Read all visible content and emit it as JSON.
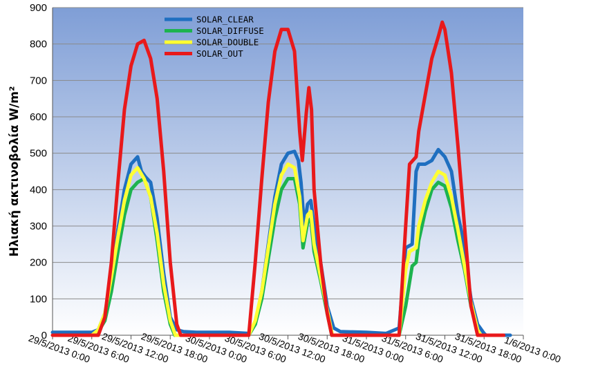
{
  "chart_data": {
    "type": "line",
    "ylabel": "Ηλιακή ακτινοβολία W/m²",
    "xlabel": "",
    "title": "",
    "ylim": [
      0,
      900
    ],
    "yticks": [
      0,
      100,
      200,
      300,
      400,
      500,
      600,
      700,
      800,
      900
    ],
    "xlim": [
      0,
      72
    ],
    "x_unit": "hours from 29/5/2013 0:00",
    "xtick_labels": [
      "29/5/2013 0:00",
      "29/5/2013 6:00",
      "29/5/2013 12:00",
      "29/5/2013 18:00",
      "30/5/2013 0:00",
      "30/5/2013 6:00",
      "30/5/2013 12:00",
      "30/5/2013 18:00",
      "31/5/2013 0:00",
      "31/5/2013 6:00",
      "31/5/2013 12:00",
      "31/5/2013 18:00",
      "1/6/2013 0:00"
    ],
    "grid": true,
    "legend_position": "top-center",
    "background": "gradient-blue",
    "series": [
      {
        "name": "SOLAR_CLEAR",
        "color": "#1f6fc0",
        "points": [
          [
            0,
            8
          ],
          [
            6,
            8
          ],
          [
            7,
            15
          ],
          [
            8,
            60
          ],
          [
            9,
            160
          ],
          [
            10,
            290
          ],
          [
            11,
            400
          ],
          [
            12,
            470
          ],
          [
            13,
            490
          ],
          [
            13.6,
            450
          ],
          [
            14.2,
            435
          ],
          [
            15,
            420
          ],
          [
            16,
            320
          ],
          [
            17,
            170
          ],
          [
            18,
            50
          ],
          [
            19,
            15
          ],
          [
            20,
            10
          ],
          [
            22,
            8
          ],
          [
            27,
            8
          ],
          [
            30,
            5
          ],
          [
            31,
            30
          ],
          [
            32,
            120
          ],
          [
            33,
            250
          ],
          [
            34,
            380
          ],
          [
            35,
            470
          ],
          [
            36,
            500
          ],
          [
            37,
            505
          ],
          [
            37.6,
            480
          ],
          [
            38,
            420
          ],
          [
            38.5,
            300
          ],
          [
            39,
            360
          ],
          [
            39.5,
            370
          ],
          [
            40,
            300
          ],
          [
            41,
            200
          ],
          [
            42,
            80
          ],
          [
            43,
            20
          ],
          [
            44,
            10
          ],
          [
            48,
            8
          ],
          [
            51,
            5
          ],
          [
            53,
            20
          ],
          [
            54,
            240
          ],
          [
            55,
            250
          ],
          [
            55.6,
            450
          ],
          [
            56,
            470
          ],
          [
            57,
            470
          ],
          [
            58,
            480
          ],
          [
            59,
            510
          ],
          [
            60,
            490
          ],
          [
            61,
            450
          ],
          [
            62,
            330
          ],
          [
            62.6,
            280
          ],
          [
            63,
            220
          ],
          [
            64,
            100
          ],
          [
            65,
            30
          ],
          [
            66,
            5
          ],
          [
            66.3,
            0
          ],
          [
            70,
            0
          ]
        ]
      },
      {
        "name": "SOLAR_DIFFUSE",
        "color": "#1db34f",
        "points": [
          [
            6,
            0
          ],
          [
            7,
            10
          ],
          [
            8,
            40
          ],
          [
            9,
            120
          ],
          [
            10,
            230
          ],
          [
            11,
            330
          ],
          [
            12,
            400
          ],
          [
            13,
            420
          ],
          [
            14,
            430
          ],
          [
            15,
            380
          ],
          [
            16,
            260
          ],
          [
            17,
            120
          ],
          [
            18,
            30
          ],
          [
            18.7,
            0
          ],
          [
            30,
            0
          ],
          [
            31,
            30
          ],
          [
            32,
            100
          ],
          [
            33,
            210
          ],
          [
            34,
            320
          ],
          [
            35,
            400
          ],
          [
            36,
            430
          ],
          [
            37,
            430
          ],
          [
            37.8,
            360
          ],
          [
            38.3,
            240
          ],
          [
            39,
            310
          ],
          [
            39.5,
            320
          ],
          [
            40,
            230
          ],
          [
            41,
            150
          ],
          [
            42,
            60
          ],
          [
            42.7,
            0
          ],
          [
            53,
            0
          ],
          [
            54,
            80
          ],
          [
            55,
            190
          ],
          [
            55.6,
            200
          ],
          [
            56,
            260
          ],
          [
            57,
            340
          ],
          [
            58,
            400
          ],
          [
            59,
            420
          ],
          [
            60,
            410
          ],
          [
            61,
            350
          ],
          [
            62,
            260
          ],
          [
            63,
            180
          ],
          [
            64,
            80
          ],
          [
            65,
            10
          ],
          [
            65.5,
            0
          ]
        ]
      },
      {
        "name": "SOLAR_DOUBLE",
        "color": "#ffff33",
        "points": [
          [
            6,
            0
          ],
          [
            7,
            15
          ],
          [
            8,
            60
          ],
          [
            9,
            160
          ],
          [
            10,
            270
          ],
          [
            11,
            370
          ],
          [
            12,
            440
          ],
          [
            13,
            460
          ],
          [
            14,
            430
          ],
          [
            15,
            380
          ],
          [
            16,
            280
          ],
          [
            17,
            140
          ],
          [
            18,
            40
          ],
          [
            18.8,
            0
          ],
          [
            30,
            0
          ],
          [
            31,
            40
          ],
          [
            32,
            120
          ],
          [
            33,
            240
          ],
          [
            34,
            360
          ],
          [
            35,
            440
          ],
          [
            36,
            470
          ],
          [
            37,
            460
          ],
          [
            37.8,
            380
          ],
          [
            38.3,
            260
          ],
          [
            39,
            330
          ],
          [
            39.5,
            340
          ],
          [
            40,
            250
          ],
          [
            41,
            160
          ],
          [
            42,
            70
          ],
          [
            42.8,
            0
          ],
          [
            53,
            0
          ],
          [
            54,
            180
          ],
          [
            54.6,
            230
          ],
          [
            55.6,
            240
          ],
          [
            56,
            300
          ],
          [
            57,
            370
          ],
          [
            58,
            420
          ],
          [
            59,
            450
          ],
          [
            60,
            440
          ],
          [
            61,
            380
          ],
          [
            62,
            290
          ],
          [
            63,
            190
          ],
          [
            64,
            90
          ],
          [
            65,
            15
          ],
          [
            65.5,
            0
          ]
        ]
      },
      {
        "name": "SOLAR_OUT",
        "color": "#e8191b",
        "points": [
          [
            0,
            0
          ],
          [
            7,
            0
          ],
          [
            8,
            50
          ],
          [
            9,
            200
          ],
          [
            10,
            420
          ],
          [
            11,
            620
          ],
          [
            12,
            740
          ],
          [
            13,
            800
          ],
          [
            14,
            810
          ],
          [
            15,
            760
          ],
          [
            16,
            650
          ],
          [
            17,
            450
          ],
          [
            18,
            200
          ],
          [
            19,
            30
          ],
          [
            19.6,
            0
          ],
          [
            30,
            0
          ],
          [
            31,
            200
          ],
          [
            32,
            430
          ],
          [
            33,
            640
          ],
          [
            34,
            780
          ],
          [
            35,
            840
          ],
          [
            36,
            840
          ],
          [
            37,
            780
          ],
          [
            37.8,
            560
          ],
          [
            38.2,
            480
          ],
          [
            38.8,
            610
          ],
          [
            39.2,
            680
          ],
          [
            39.6,
            620
          ],
          [
            40,
            400
          ],
          [
            41,
            200
          ],
          [
            42,
            60
          ],
          [
            42.7,
            0
          ],
          [
            53,
            0
          ],
          [
            54,
            300
          ],
          [
            54.6,
            470
          ],
          [
            55.6,
            490
          ],
          [
            56,
            560
          ],
          [
            57,
            660
          ],
          [
            58,
            760
          ],
          [
            59,
            820
          ],
          [
            59.6,
            860
          ],
          [
            60,
            840
          ],
          [
            61,
            720
          ],
          [
            62,
            520
          ],
          [
            63,
            300
          ],
          [
            64,
            80
          ],
          [
            65,
            0
          ],
          [
            66,
            0
          ],
          [
            69,
            0
          ]
        ]
      }
    ]
  }
}
